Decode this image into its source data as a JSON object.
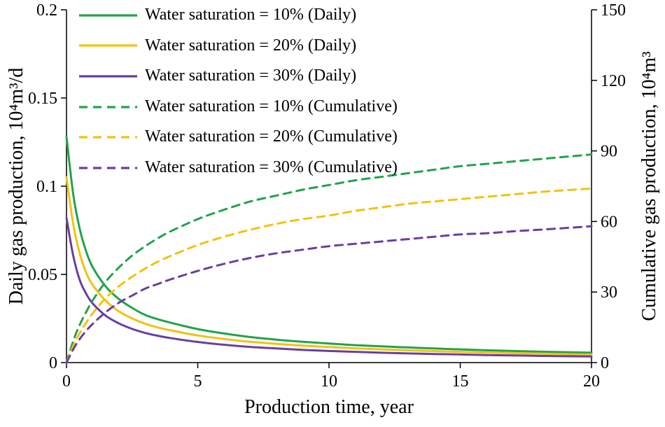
{
  "chart_data": {
    "type": "line",
    "title": "",
    "xlabel": "Production time, year",
    "ylabel_left": "Daily gas production, 10⁴m³/d",
    "ylabel_right": "Cumulative gas production, 10⁴m³",
    "xlim": [
      0,
      20
    ],
    "ylim_left": [
      0,
      0.2
    ],
    "ylim_right": [
      0,
      150
    ],
    "grid": false,
    "legend_position": "top-left",
    "xticks": [
      0,
      5,
      10,
      15,
      20
    ],
    "xtick_labels": [
      "0",
      "5",
      "10",
      "15",
      "20"
    ],
    "yticks_left": [
      0,
      0.05,
      0.1,
      0.15,
      0.2
    ],
    "ytick_labels_left": [
      "0",
      "0.05",
      "0.1",
      "0.15",
      "0.2"
    ],
    "yticks_right": [
      0,
      30,
      60,
      90,
      120,
      150
    ],
    "ytick_labels_right": [
      "0",
      "30",
      "60",
      "90",
      "120",
      "150"
    ],
    "x": [
      0,
      0.25,
      0.5,
      0.75,
      1,
      1.5,
      2,
      2.5,
      3,
      3.5,
      4,
      5,
      6,
      7,
      8,
      9,
      10,
      11,
      12,
      13,
      14,
      15,
      16,
      17,
      18,
      19,
      20
    ],
    "series": [
      {
        "id": "daily-10",
        "name": "Water saturation = 10% (Daily)",
        "axis": "left",
        "dash": "solid",
        "color": "#22a34c",
        "values": [
          0.128,
          0.096,
          0.076,
          0.063,
          0.054,
          0.043,
          0.036,
          0.031,
          0.027,
          0.0245,
          0.0225,
          0.019,
          0.0165,
          0.0145,
          0.013,
          0.0118,
          0.0108,
          0.0099,
          0.0092,
          0.0086,
          0.008,
          0.0075,
          0.007,
          0.0066,
          0.0062,
          0.0059,
          0.0056
        ]
      },
      {
        "id": "daily-20",
        "name": "Water saturation = 20% (Daily)",
        "axis": "left",
        "dash": "solid",
        "color": "#f1c213",
        "values": [
          0.105,
          0.079,
          0.062,
          0.051,
          0.044,
          0.035,
          0.029,
          0.025,
          0.022,
          0.0198,
          0.0182,
          0.0154,
          0.0134,
          0.0118,
          0.0106,
          0.0096,
          0.0088,
          0.0081,
          0.0075,
          0.007,
          0.0065,
          0.0061,
          0.0057,
          0.0054,
          0.0051,
          0.0048,
          0.0046
        ]
      },
      {
        "id": "daily-30",
        "name": "Water saturation = 30% (Daily)",
        "axis": "left",
        "dash": "solid",
        "color": "#6a3fa0",
        "values": [
          0.082,
          0.061,
          0.047,
          0.039,
          0.0335,
          0.0265,
          0.0222,
          0.0191,
          0.0168,
          0.0151,
          0.0138,
          0.0117,
          0.0101,
          0.0089,
          0.008,
          0.0072,
          0.0066,
          0.0061,
          0.0056,
          0.0052,
          0.0049,
          0.0046,
          0.0043,
          0.0041,
          0.0038,
          0.0036,
          0.0035
        ]
      },
      {
        "id": "cumulative-10",
        "name": "Water saturation = 10% (Cumulative)",
        "axis": "right",
        "dash": "dashed",
        "color": "#22a34c",
        "values": [
          0,
          9,
          16,
          21.5,
          26.5,
          34.5,
          40.5,
          45.5,
          49.5,
          53,
          56,
          61,
          65,
          68.5,
          71,
          73.5,
          75.5,
          77.5,
          79,
          80.5,
          82,
          83.5,
          84.5,
          85.5,
          86.5,
          87.5,
          88.5
        ]
      },
      {
        "id": "cumulative-20",
        "name": "Water saturation = 20% (Cumulative)",
        "axis": "right",
        "dash": "dashed",
        "color": "#f1c213",
        "values": [
          0,
          7,
          12.5,
          17,
          21,
          27.5,
          32.5,
          36.5,
          40,
          43,
          45.5,
          50,
          53.5,
          56.5,
          59,
          61,
          62.5,
          64.5,
          66,
          67.5,
          68.5,
          69.5,
          70.5,
          71.5,
          72.5,
          73.3,
          74
        ]
      },
      {
        "id": "cumulative-30",
        "name": "Water saturation = 30% (Cumulative)",
        "axis": "right",
        "dash": "dashed",
        "color": "#6a3fa0",
        "values": [
          0,
          5.5,
          10,
          13.5,
          16.5,
          21.5,
          25.5,
          28.5,
          31.5,
          33.5,
          35.5,
          39,
          42,
          44.5,
          46.5,
          48,
          49.5,
          50.5,
          51.5,
          52.5,
          53.5,
          54.5,
          55,
          55.8,
          56.5,
          57.2,
          58
        ]
      }
    ],
    "axis_color": "#000000"
  }
}
